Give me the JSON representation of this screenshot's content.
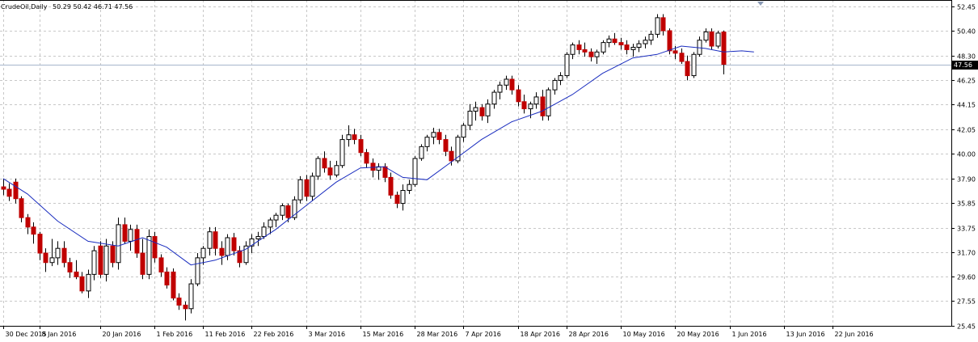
{
  "header": {
    "symbol": "CrudeOil,Daily",
    "ohlc": "50.29 50.42 46.71 47.56"
  },
  "current_price": "47.56",
  "colors": {
    "background": "#ffffff",
    "grid": "#c8c8c8",
    "candle_up": "#ffffff",
    "candle_down": "#c00000",
    "candle_outline": "#000000",
    "moving_average": "#1a2dbf",
    "bid_line": "#a7b6cc"
  },
  "chart_data": {
    "type": "candlestick",
    "title": "",
    "ylim": [
      25.45,
      53.0
    ],
    "y_ticks": [
      "52.45",
      "50.40",
      "48.30",
      "46.25",
      "44.15",
      "42.05",
      "40.00",
      "37.90",
      "35.85",
      "33.75",
      "31.70",
      "29.60",
      "27.55",
      "25.45"
    ],
    "y_tick_values": [
      52.45,
      50.4,
      48.3,
      46.25,
      44.15,
      42.05,
      40.0,
      37.9,
      35.85,
      33.75,
      31.7,
      29.6,
      27.55,
      25.45
    ],
    "x_ticks": [
      {
        "label": "30 Dec 2015",
        "index": 0
      },
      {
        "label": "8 Jan 2016",
        "index": 6
      },
      {
        "label": "20 Jan 2016",
        "index": 16
      },
      {
        "label": "1 Feb 2016",
        "index": 25
      },
      {
        "label": "11 Feb 2016",
        "index": 33
      },
      {
        "label": "22 Feb 2016",
        "index": 41
      },
      {
        "label": "3 Mar 2016",
        "index": 50
      },
      {
        "label": "15 Mar 2016",
        "index": 59
      },
      {
        "label": "28 Mar 2016",
        "index": 68
      },
      {
        "label": "7 Apr 2016",
        "index": 76
      },
      {
        "label": "18 Apr 2016",
        "index": 85
      },
      {
        "label": "28 Apr 2016",
        "index": 93
      },
      {
        "label": "10 May 2016",
        "index": 102
      },
      {
        "label": "20 May 2016",
        "index": 111
      },
      {
        "label": "1 Jun 2016",
        "index": 120
      },
      {
        "label": "13 Jun 2016",
        "index": 129
      },
      {
        "label": "22 Jun 2016",
        "index": 137
      }
    ],
    "candles": [
      {
        "o": 37.2,
        "h": 37.9,
        "l": 36.5,
        "c": 37.0
      },
      {
        "o": 37.0,
        "h": 37.5,
        "l": 36.0,
        "c": 36.4
      },
      {
        "o": 37.6,
        "h": 37.9,
        "l": 35.8,
        "c": 36.2
      },
      {
        "o": 36.2,
        "h": 36.4,
        "l": 34.2,
        "c": 34.6
      },
      {
        "o": 34.6,
        "h": 34.9,
        "l": 33.2,
        "c": 33.8
      },
      {
        "o": 33.8,
        "h": 34.2,
        "l": 32.4,
        "c": 33.2
      },
      {
        "o": 33.2,
        "h": 33.4,
        "l": 31.0,
        "c": 31.6
      },
      {
        "o": 31.6,
        "h": 32.0,
        "l": 30.0,
        "c": 30.8
      },
      {
        "o": 30.8,
        "h": 32.8,
        "l": 30.5,
        "c": 31.2
      },
      {
        "o": 31.2,
        "h": 32.6,
        "l": 30.6,
        "c": 32.0
      },
      {
        "o": 32.0,
        "h": 32.6,
        "l": 30.4,
        "c": 30.8
      },
      {
        "o": 30.8,
        "h": 31.2,
        "l": 29.5,
        "c": 30.0
      },
      {
        "o": 30.0,
        "h": 31.0,
        "l": 29.4,
        "c": 29.6
      },
      {
        "o": 29.6,
        "h": 30.0,
        "l": 28.2,
        "c": 28.4
      },
      {
        "o": 28.4,
        "h": 30.2,
        "l": 27.8,
        "c": 29.8
      },
      {
        "o": 29.8,
        "h": 32.2,
        "l": 29.3,
        "c": 31.8
      },
      {
        "o": 32.2,
        "h": 32.6,
        "l": 29.5,
        "c": 29.8
      },
      {
        "o": 29.8,
        "h": 32.8,
        "l": 29.2,
        "c": 32.2
      },
      {
        "o": 32.2,
        "h": 32.6,
        "l": 30.4,
        "c": 30.8
      },
      {
        "o": 30.8,
        "h": 34.6,
        "l": 30.2,
        "c": 34.0
      },
      {
        "o": 34.0,
        "h": 34.6,
        "l": 32.4,
        "c": 32.6
      },
      {
        "o": 32.6,
        "h": 34.0,
        "l": 31.8,
        "c": 33.6
      },
      {
        "o": 33.6,
        "h": 34.0,
        "l": 31.2,
        "c": 31.6
      },
      {
        "o": 31.6,
        "h": 32.8,
        "l": 29.4,
        "c": 29.8
      },
      {
        "o": 29.8,
        "h": 33.6,
        "l": 29.4,
        "c": 33.0
      },
      {
        "o": 33.0,
        "h": 33.4,
        "l": 30.8,
        "c": 31.2
      },
      {
        "o": 31.2,
        "h": 31.5,
        "l": 29.6,
        "c": 30.0
      },
      {
        "o": 30.0,
        "h": 30.4,
        "l": 28.6,
        "c": 28.9
      },
      {
        "o": 30.0,
        "h": 30.3,
        "l": 27.6,
        "c": 27.8
      },
      {
        "o": 27.8,
        "h": 28.2,
        "l": 26.8,
        "c": 27.2
      },
      {
        "o": 27.2,
        "h": 27.5,
        "l": 25.9,
        "c": 26.9
      },
      {
        "o": 26.9,
        "h": 29.4,
        "l": 26.5,
        "c": 29.0
      },
      {
        "o": 29.0,
        "h": 31.6,
        "l": 28.8,
        "c": 31.2
      },
      {
        "o": 31.2,
        "h": 32.2,
        "l": 30.6,
        "c": 32.0
      },
      {
        "o": 32.0,
        "h": 33.8,
        "l": 31.4,
        "c": 33.4
      },
      {
        "o": 33.4,
        "h": 33.8,
        "l": 31.4,
        "c": 32.0
      },
      {
        "o": 32.0,
        "h": 32.6,
        "l": 30.6,
        "c": 31.4
      },
      {
        "o": 31.4,
        "h": 33.2,
        "l": 31.0,
        "c": 32.9
      },
      {
        "o": 32.9,
        "h": 33.3,
        "l": 31.4,
        "c": 31.8
      },
      {
        "o": 31.8,
        "h": 32.2,
        "l": 30.4,
        "c": 30.8
      },
      {
        "o": 30.8,
        "h": 32.6,
        "l": 30.6,
        "c": 32.2
      },
      {
        "o": 32.2,
        "h": 33.2,
        "l": 31.6,
        "c": 32.8
      },
      {
        "o": 32.8,
        "h": 33.4,
        "l": 32.2,
        "c": 33.0
      },
      {
        "o": 33.0,
        "h": 34.2,
        "l": 32.8,
        "c": 33.8
      },
      {
        "o": 33.8,
        "h": 34.6,
        "l": 33.2,
        "c": 34.4
      },
      {
        "o": 34.4,
        "h": 35.0,
        "l": 33.8,
        "c": 34.8
      },
      {
        "o": 34.8,
        "h": 35.8,
        "l": 34.4,
        "c": 35.6
      },
      {
        "o": 35.6,
        "h": 35.8,
        "l": 34.2,
        "c": 34.6
      },
      {
        "o": 34.6,
        "h": 36.4,
        "l": 34.4,
        "c": 36.1
      },
      {
        "o": 36.1,
        "h": 38.1,
        "l": 35.8,
        "c": 37.8
      },
      {
        "o": 37.8,
        "h": 38.2,
        "l": 36.0,
        "c": 36.4
      },
      {
        "o": 36.4,
        "h": 38.4,
        "l": 36.0,
        "c": 38.1
      },
      {
        "o": 38.1,
        "h": 39.8,
        "l": 37.8,
        "c": 39.6
      },
      {
        "o": 39.6,
        "h": 40.2,
        "l": 38.4,
        "c": 38.8
      },
      {
        "o": 38.8,
        "h": 39.4,
        "l": 37.8,
        "c": 38.2
      },
      {
        "o": 38.2,
        "h": 39.4,
        "l": 38.0,
        "c": 39.0
      },
      {
        "o": 39.0,
        "h": 41.6,
        "l": 38.8,
        "c": 41.2
      },
      {
        "o": 41.2,
        "h": 42.4,
        "l": 40.6,
        "c": 41.6
      },
      {
        "o": 41.6,
        "h": 42.1,
        "l": 40.8,
        "c": 41.2
      },
      {
        "o": 41.2,
        "h": 41.6,
        "l": 39.8,
        "c": 40.1
      },
      {
        "o": 40.1,
        "h": 40.4,
        "l": 38.8,
        "c": 39.2
      },
      {
        "o": 39.2,
        "h": 39.6,
        "l": 38.0,
        "c": 38.6
      },
      {
        "o": 38.6,
        "h": 39.2,
        "l": 37.8,
        "c": 38.9
      },
      {
        "o": 38.9,
        "h": 39.2,
        "l": 37.6,
        "c": 38.0
      },
      {
        "o": 38.0,
        "h": 38.4,
        "l": 36.2,
        "c": 36.5
      },
      {
        "o": 36.5,
        "h": 36.8,
        "l": 35.4,
        "c": 35.8
      },
      {
        "o": 35.8,
        "h": 37.4,
        "l": 35.2,
        "c": 36.9
      },
      {
        "o": 36.9,
        "h": 37.8,
        "l": 36.6,
        "c": 37.4
      },
      {
        "o": 37.4,
        "h": 39.8,
        "l": 37.2,
        "c": 39.6
      },
      {
        "o": 39.6,
        "h": 40.8,
        "l": 39.4,
        "c": 40.6
      },
      {
        "o": 40.6,
        "h": 41.6,
        "l": 40.2,
        "c": 41.4
      },
      {
        "o": 41.4,
        "h": 42.2,
        "l": 40.8,
        "c": 41.8
      },
      {
        "o": 41.8,
        "h": 42.1,
        "l": 40.8,
        "c": 41.2
      },
      {
        "o": 41.2,
        "h": 41.6,
        "l": 39.8,
        "c": 40.2
      },
      {
        "o": 40.2,
        "h": 40.6,
        "l": 39.0,
        "c": 39.4
      },
      {
        "o": 39.4,
        "h": 41.6,
        "l": 39.2,
        "c": 41.4
      },
      {
        "o": 41.4,
        "h": 42.6,
        "l": 41.0,
        "c": 42.4
      },
      {
        "o": 42.4,
        "h": 44.2,
        "l": 42.0,
        "c": 43.6
      },
      {
        "o": 43.6,
        "h": 44.4,
        "l": 42.8,
        "c": 43.9
      },
      {
        "o": 43.9,
        "h": 44.2,
        "l": 42.8,
        "c": 43.2
      },
      {
        "o": 43.2,
        "h": 44.6,
        "l": 42.6,
        "c": 44.2
      },
      {
        "o": 44.2,
        "h": 45.4,
        "l": 43.8,
        "c": 45.2
      },
      {
        "o": 45.2,
        "h": 46.1,
        "l": 44.6,
        "c": 45.8
      },
      {
        "o": 45.8,
        "h": 46.6,
        "l": 45.4,
        "c": 46.3
      },
      {
        "o": 46.3,
        "h": 46.6,
        "l": 45.0,
        "c": 45.4
      },
      {
        "o": 45.4,
        "h": 45.8,
        "l": 44.0,
        "c": 44.4
      },
      {
        "o": 44.4,
        "h": 45.0,
        "l": 43.4,
        "c": 43.8
      },
      {
        "o": 43.8,
        "h": 44.4,
        "l": 43.0,
        "c": 44.2
      },
      {
        "o": 44.2,
        "h": 45.2,
        "l": 43.8,
        "c": 44.8
      },
      {
        "o": 44.8,
        "h": 45.4,
        "l": 42.8,
        "c": 43.2
      },
      {
        "o": 43.2,
        "h": 45.6,
        "l": 42.8,
        "c": 45.4
      },
      {
        "o": 45.4,
        "h": 46.4,
        "l": 45.0,
        "c": 46.2
      },
      {
        "o": 46.2,
        "h": 46.9,
        "l": 45.8,
        "c": 46.6
      },
      {
        "o": 46.6,
        "h": 48.6,
        "l": 46.4,
        "c": 48.4
      },
      {
        "o": 48.4,
        "h": 49.4,
        "l": 48.0,
        "c": 49.2
      },
      {
        "o": 49.2,
        "h": 49.6,
        "l": 48.4,
        "c": 48.8
      },
      {
        "o": 48.8,
        "h": 49.4,
        "l": 48.2,
        "c": 48.6
      },
      {
        "o": 48.6,
        "h": 48.9,
        "l": 47.8,
        "c": 48.2
      },
      {
        "o": 48.2,
        "h": 48.8,
        "l": 47.6,
        "c": 48.6
      },
      {
        "o": 48.6,
        "h": 49.6,
        "l": 48.4,
        "c": 49.4
      },
      {
        "o": 49.4,
        "h": 50.0,
        "l": 49.0,
        "c": 49.7
      },
      {
        "o": 49.7,
        "h": 50.2,
        "l": 49.2,
        "c": 49.4
      },
      {
        "o": 49.4,
        "h": 49.8,
        "l": 48.8,
        "c": 49.2
      },
      {
        "o": 49.2,
        "h": 49.6,
        "l": 48.4,
        "c": 48.8
      },
      {
        "o": 48.8,
        "h": 49.3,
        "l": 48.2,
        "c": 49.0
      },
      {
        "o": 49.0,
        "h": 49.6,
        "l": 48.6,
        "c": 49.3
      },
      {
        "o": 49.3,
        "h": 49.9,
        "l": 48.9,
        "c": 49.6
      },
      {
        "o": 49.6,
        "h": 50.4,
        "l": 49.2,
        "c": 50.1
      },
      {
        "o": 50.1,
        "h": 51.8,
        "l": 49.8,
        "c": 51.5
      },
      {
        "o": 51.5,
        "h": 51.8,
        "l": 50.0,
        "c": 50.4
      },
      {
        "o": 50.4,
        "h": 50.6,
        "l": 48.4,
        "c": 48.7
      },
      {
        "o": 48.7,
        "h": 49.1,
        "l": 48.0,
        "c": 48.5
      },
      {
        "o": 48.5,
        "h": 48.9,
        "l": 47.6,
        "c": 47.8
      },
      {
        "o": 47.8,
        "h": 48.3,
        "l": 46.2,
        "c": 46.6
      },
      {
        "o": 46.6,
        "h": 48.6,
        "l": 46.4,
        "c": 48.4
      },
      {
        "o": 48.4,
        "h": 49.9,
        "l": 48.2,
        "c": 49.6
      },
      {
        "o": 49.6,
        "h": 50.6,
        "l": 49.4,
        "c": 50.3
      },
      {
        "o": 50.3,
        "h": 50.6,
        "l": 48.8,
        "c": 49.1
      },
      {
        "o": 49.1,
        "h": 50.4,
        "l": 48.9,
        "c": 50.2
      },
      {
        "o": 50.29,
        "h": 50.42,
        "l": 46.71,
        "c": 47.56
      }
    ],
    "moving_average": [
      {
        "i": 0,
        "v": 37.9
      },
      {
        "i": 4,
        "v": 36.6
      },
      {
        "i": 9,
        "v": 34.3
      },
      {
        "i": 14,
        "v": 32.6
      },
      {
        "i": 19,
        "v": 32.2
      },
      {
        "i": 23,
        "v": 32.9
      },
      {
        "i": 27,
        "v": 32.1
      },
      {
        "i": 31,
        "v": 30.6
      },
      {
        "i": 35,
        "v": 31.0
      },
      {
        "i": 40,
        "v": 31.9
      },
      {
        "i": 45,
        "v": 33.6
      },
      {
        "i": 50,
        "v": 35.6
      },
      {
        "i": 55,
        "v": 37.6
      },
      {
        "i": 59,
        "v": 38.8
      },
      {
        "i": 63,
        "v": 38.9
      },
      {
        "i": 66,
        "v": 38.0
      },
      {
        "i": 70,
        "v": 37.8
      },
      {
        "i": 74,
        "v": 39.3
      },
      {
        "i": 79,
        "v": 41.2
      },
      {
        "i": 84,
        "v": 42.7
      },
      {
        "i": 89,
        "v": 43.6
      },
      {
        "i": 94,
        "v": 45.0
      },
      {
        "i": 99,
        "v": 46.8
      },
      {
        "i": 104,
        "v": 48.1
      },
      {
        "i": 108,
        "v": 48.4
      },
      {
        "i": 112,
        "v": 49.1
      },
      {
        "i": 116,
        "v": 48.9
      },
      {
        "i": 119,
        "v": 48.6
      },
      {
        "i": 122,
        "v": 48.7
      },
      {
        "i": 124,
        "v": 48.6
      }
    ]
  }
}
